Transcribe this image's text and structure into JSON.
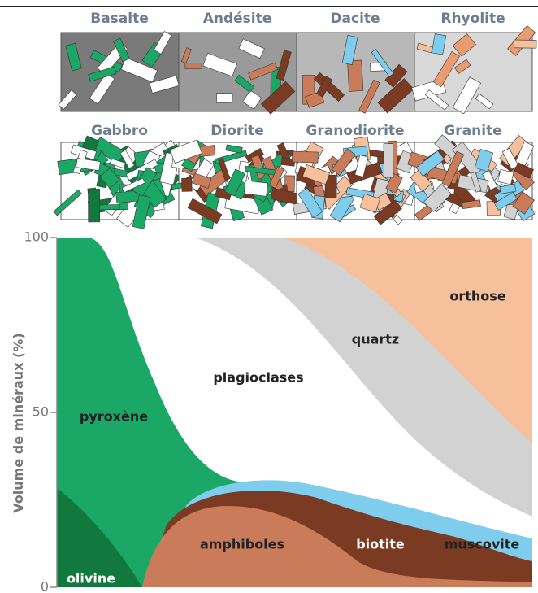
{
  "rocks": {
    "volcanic": [
      "Basalte",
      "Andésite",
      "Dacite",
      "Rhyolite"
    ],
    "plutonic": [
      "Gabbro",
      "Diorite",
      "Granodiorite",
      "Granite"
    ]
  },
  "axis": {
    "label": "Volume de minéraux (%)",
    "ylim": [
      0,
      100
    ],
    "ticks": [
      0,
      50,
      100
    ]
  },
  "minerals": {
    "pyroxene": "pyroxène",
    "olivine": "olivine",
    "plagioclase": "plagioclases",
    "quartz": "quartz",
    "orthose": "orthose",
    "amphibole": "amphiboles",
    "biotite": "biotite",
    "muscovite": "muscovite"
  }
}
